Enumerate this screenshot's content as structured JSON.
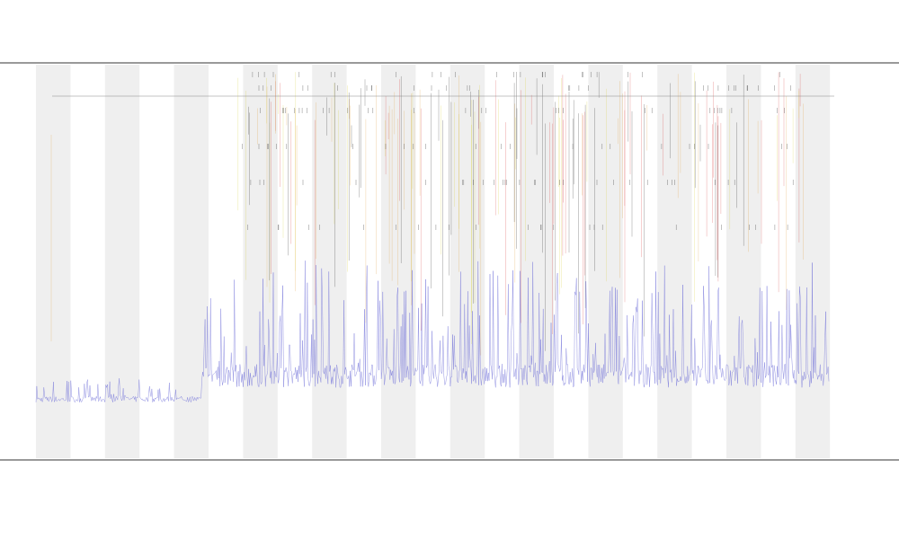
{
  "chart_data": {
    "type": "line",
    "title": "",
    "subtitle_lines": [],
    "xlabel": "",
    "ylabel": "",
    "grid": false,
    "legend_position": "top-left",
    "legend_entries": [],
    "band_color": "#efefef",
    "colors": {
      "baseline": "#6f6fd8",
      "orange": "#e0a040",
      "red": "#d83a3a",
      "yellow": "#d8d040",
      "black": "#222222",
      "frame": "#333333"
    },
    "x_count": 1000,
    "band_count": 12,
    "series": [
      {
        "kind": "baseline",
        "description_free": true,
        "segments": [
          {
            "from": 0,
            "to": 0.21,
            "level": 0.04,
            "noise": 0.015,
            "spike": 0.05
          },
          {
            "from": 0.21,
            "to": 1.0,
            "level": 0.1,
            "noise": 0.06,
            "spike": 0.28
          }
        ]
      },
      {
        "kind": "event-stripes",
        "events": []
      }
    ]
  }
}
